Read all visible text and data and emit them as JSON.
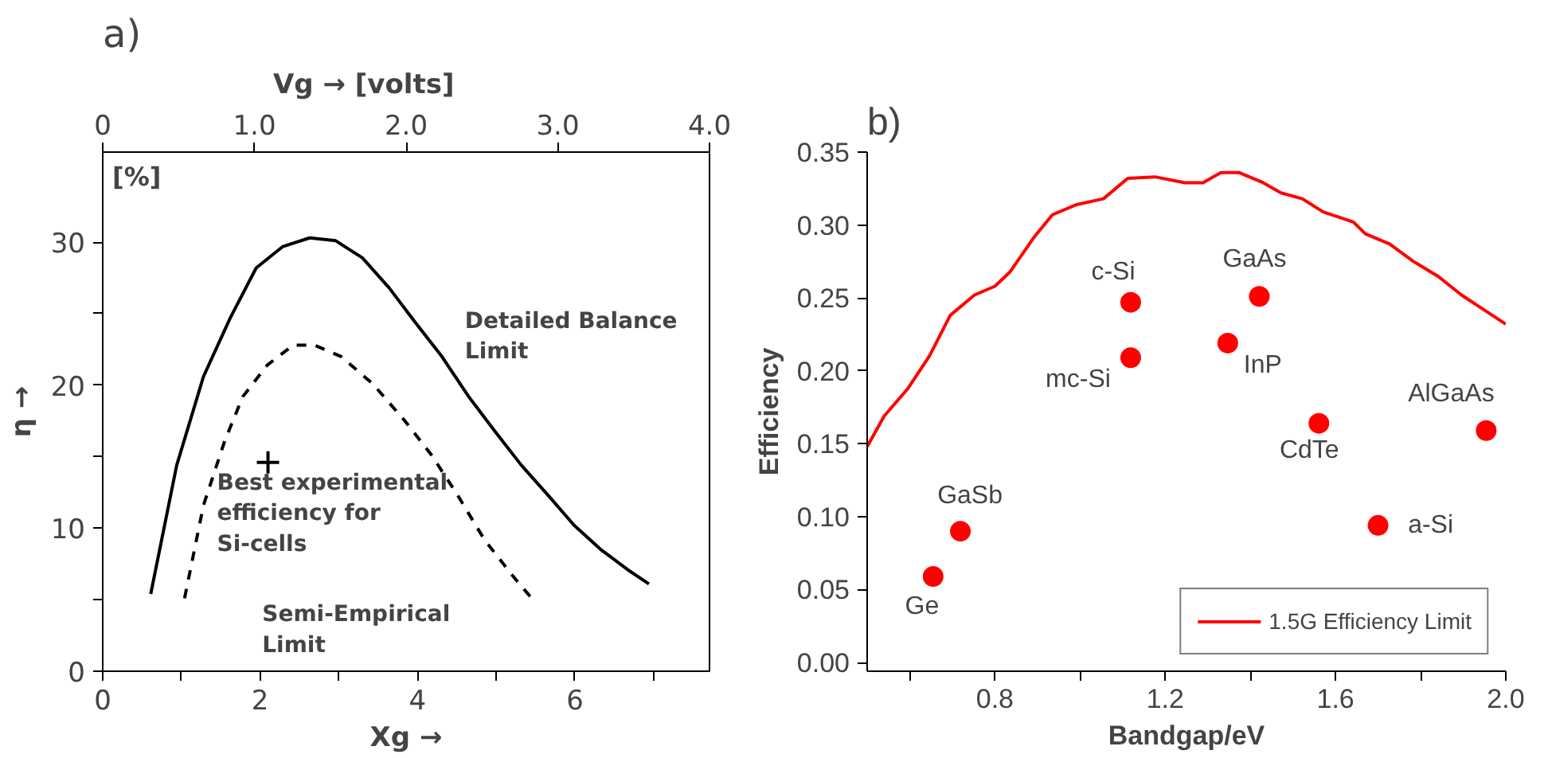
{
  "chart_data": [
    {
      "type": "line",
      "title": "a)",
      "xlabel": "Xg →",
      "x2label": "Vg →          [volts]",
      "ylabel": "η →",
      "xlim": [
        0,
        7.71
      ],
      "xticks": [
        0,
        {
          "value": 1,
          "label": null
        },
        2,
        {
          "value": 3,
          "label": null
        },
        4,
        {
          "value": 5,
          "label": null
        },
        6,
        {
          "value": 7,
          "label": null
        }
      ],
      "x2lim": [
        0,
        4
      ],
      "x2ticks": [
        0,
        {
          "value": 1,
          "label": "1.0"
        },
        {
          "value": 2,
          "label": "2.0"
        },
        {
          "value": 3,
          "label": "3.0"
        },
        {
          "value": 4,
          "label": "4.0"
        }
      ],
      "ylim": [
        0,
        36.3
      ],
      "yticks": [
        0,
        {
          "value": 5,
          "label": null
        },
        10,
        {
          "value": 15,
          "label": null
        },
        20,
        {
          "value": 25,
          "label": null
        },
        30
      ],
      "grid": false,
      "legend": false,
      "series": [
        {
          "color": "#000000",
          "line_style": "solid",
          "x": [
            0.61,
            0.94,
            1.28,
            1.62,
            1.95,
            2.29,
            2.63,
            2.96,
            3.3,
            3.64,
            3.97,
            4.31,
            4.65,
            4.98,
            5.32,
            5.66,
            5.99,
            6.33,
            6.67,
            6.94
          ],
          "values": [
            5.4,
            14.4,
            20.6,
            24.7,
            28.2,
            29.7,
            30.3,
            30.1,
            28.9,
            26.8,
            24.4,
            22.0,
            19.2,
            16.8,
            14.4,
            12.3,
            10.2,
            8.5,
            7.1,
            6.1
          ]
        },
        {
          "color": "#000000",
          "line_style": "dashed",
          "x": [
            1.04,
            1.28,
            1.55,
            1.78,
            2.09,
            2.42,
            2.69,
            3.03,
            3.43,
            3.84,
            4.18,
            4.51,
            4.85,
            5.19,
            5.45
          ],
          "values": [
            5.1,
            11.6,
            16.1,
            19.2,
            21.4,
            22.8,
            22.8,
            22.0,
            20.1,
            17.5,
            15.1,
            12.3,
            9.2,
            6.8,
            5.1
          ]
        },
        {
          "type": "scatter",
          "color": "#000000",
          "marker": "cross",
          "x": [
            2.1
          ],
          "values": [
            14.6
          ]
        }
      ],
      "annotations": [
        "[%]",
        {
          "text": "Detailed  Balance\nLimit",
          "x": 4.44,
          "y": 20.1
        },
        {
          "text": "Semi-Empirical\nLimit",
          "x": 4.92,
          "y": 8.5
        },
        {
          "text": "Best experimental\nefficiency for\nSi-cells",
          "x": 2.1,
          "y": 14.6
        }
      ]
    },
    {
      "type": "scatter",
      "title": "b)",
      "xlabel": "Bandgap/eV",
      "ylabel": "Efficiency",
      "xlim": [
        0.5,
        2.0
      ],
      "xticks": [
        {
          "value": 0.6,
          "label": null
        },
        0.8,
        {
          "value": 1.0,
          "label": null
        },
        1.2,
        {
          "value": 1.4,
          "label": null
        },
        1.6,
        {
          "value": 1.8,
          "label": null
        },
        {
          "value": 2.0,
          "label": "2.0"
        }
      ],
      "ylim": [
        -0.006,
        0.35
      ],
      "yticks": [
        {
          "value": 0,
          "label": "0.00"
        },
        {
          "value": 0.05,
          "label": "0.05"
        },
        {
          "value": 0.1,
          "label": "0.10"
        },
        {
          "value": 0.15,
          "label": "0.15"
        },
        {
          "value": 0.2,
          "label": "0.20"
        },
        {
          "value": 0.25,
          "label": "0.25"
        },
        {
          "value": 0.3,
          "label": "0.30"
        },
        {
          "value": 0.35,
          "label": "0.35"
        }
      ],
      "grid": false,
      "legend": "bottom right",
      "series": [
        {
          "type": "line",
          "name": "1.5G Efficiency Limit",
          "color": "#ff0000",
          "line_style": "solid",
          "x": [
            0.5,
            0.54,
            0.596,
            0.646,
            0.695,
            0.752,
            0.8,
            0.836,
            0.893,
            0.935,
            0.992,
            1.055,
            1.112,
            1.176,
            1.246,
            1.289,
            1.331,
            1.373,
            1.43,
            1.472,
            1.522,
            1.571,
            1.642,
            1.67,
            1.727,
            1.783,
            1.84,
            1.896,
            1.953,
            2.0
          ],
          "values": [
            0.148,
            0.169,
            0.188,
            0.21,
            0.238,
            0.252,
            0.258,
            0.268,
            0.292,
            0.307,
            0.314,
            0.318,
            0.332,
            0.333,
            0.329,
            0.329,
            0.336,
            0.336,
            0.329,
            0.322,
            0.318,
            0.309,
            0.302,
            0.294,
            0.287,
            0.275,
            0.265,
            0.252,
            0.241,
            0.232
          ]
        },
        {
          "color": "#ff0000",
          "marker": "circle",
          "x": [
            0.655,
            0.719,
            1.119,
            1.119,
            1.347,
            1.421,
            1.561,
            1.7,
            1.954
          ],
          "values": [
            0.059,
            0.09,
            0.247,
            0.209,
            0.219,
            0.251,
            0.164,
            0.094,
            0.159
          ]
        }
      ],
      "annotations": [
        {
          "text": "Ge",
          "x": 0.655,
          "y": 0.059
        },
        {
          "text": "GaSb",
          "x": 0.719,
          "y": 0.09
        },
        {
          "text": "c-Si",
          "x": 1.119,
          "y": 0.247
        },
        {
          "text": "mc-Si",
          "x": 1.119,
          "y": 0.209
        },
        {
          "text": "InP",
          "x": 1.347,
          "y": 0.219
        },
        {
          "text": "GaAs",
          "x": 1.421,
          "y": 0.251
        },
        {
          "text": "CdTe",
          "x": 1.561,
          "y": 0.164
        },
        {
          "text": "a-Si",
          "x": 1.7,
          "y": 0.094
        },
        {
          "text": "AlGaAs",
          "x": 1.954,
          "y": 0.159
        }
      ]
    }
  ]
}
